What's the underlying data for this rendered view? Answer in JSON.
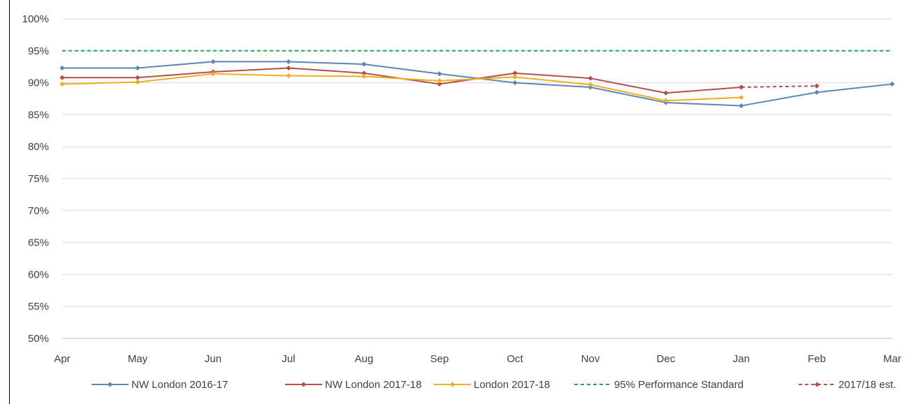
{
  "chart_data": {
    "type": "line",
    "categories": [
      "Apr",
      "May",
      "Jun",
      "Jul",
      "Aug",
      "Sep",
      "Oct",
      "Nov",
      "Dec",
      "Jan",
      "Feb",
      "Mar"
    ],
    "y_ticks": [
      "50%",
      "55%",
      "60%",
      "65%",
      "70%",
      "75%",
      "80%",
      "85%",
      "90%",
      "95%",
      "100%"
    ],
    "ylim": [
      50,
      100
    ],
    "y_unit": "%",
    "grid": true,
    "legend_position": "bottom",
    "series": [
      {
        "name": "NW London 2016-17",
        "color": "#5B86B5",
        "style": "solid",
        "marker": "diamond",
        "values": [
          92.3,
          92.3,
          93.3,
          93.3,
          92.9,
          91.4,
          90.0,
          89.3,
          86.9,
          86.4,
          88.5,
          89.8
        ]
      },
      {
        "name": "NW London 2017-18",
        "color": "#B54D4B",
        "style": "solid",
        "marker": "diamond",
        "values": [
          90.8,
          90.8,
          91.7,
          92.3,
          91.5,
          89.8,
          91.5,
          90.7,
          88.4,
          89.3,
          null,
          null
        ]
      },
      {
        "name": "London 2017-18",
        "color": "#F0AD1E",
        "style": "solid",
        "marker": "diamond",
        "values": [
          89.8,
          90.1,
          91.4,
          91.1,
          91.0,
          90.3,
          90.9,
          89.7,
          87.2,
          87.7,
          null,
          null
        ]
      },
      {
        "name": "95% Performance Standard",
        "color": "#19A84D",
        "style": "dashed",
        "marker": "none",
        "values": [
          95,
          95,
          95,
          95,
          95,
          95,
          95,
          95,
          95,
          95,
          95,
          95
        ]
      },
      {
        "name": "2017/18 est.",
        "color": "#B54D4B",
        "style": "dashed",
        "marker": "diamond",
        "values": [
          null,
          null,
          null,
          null,
          null,
          null,
          null,
          null,
          null,
          89.3,
          89.5,
          null
        ]
      }
    ]
  }
}
